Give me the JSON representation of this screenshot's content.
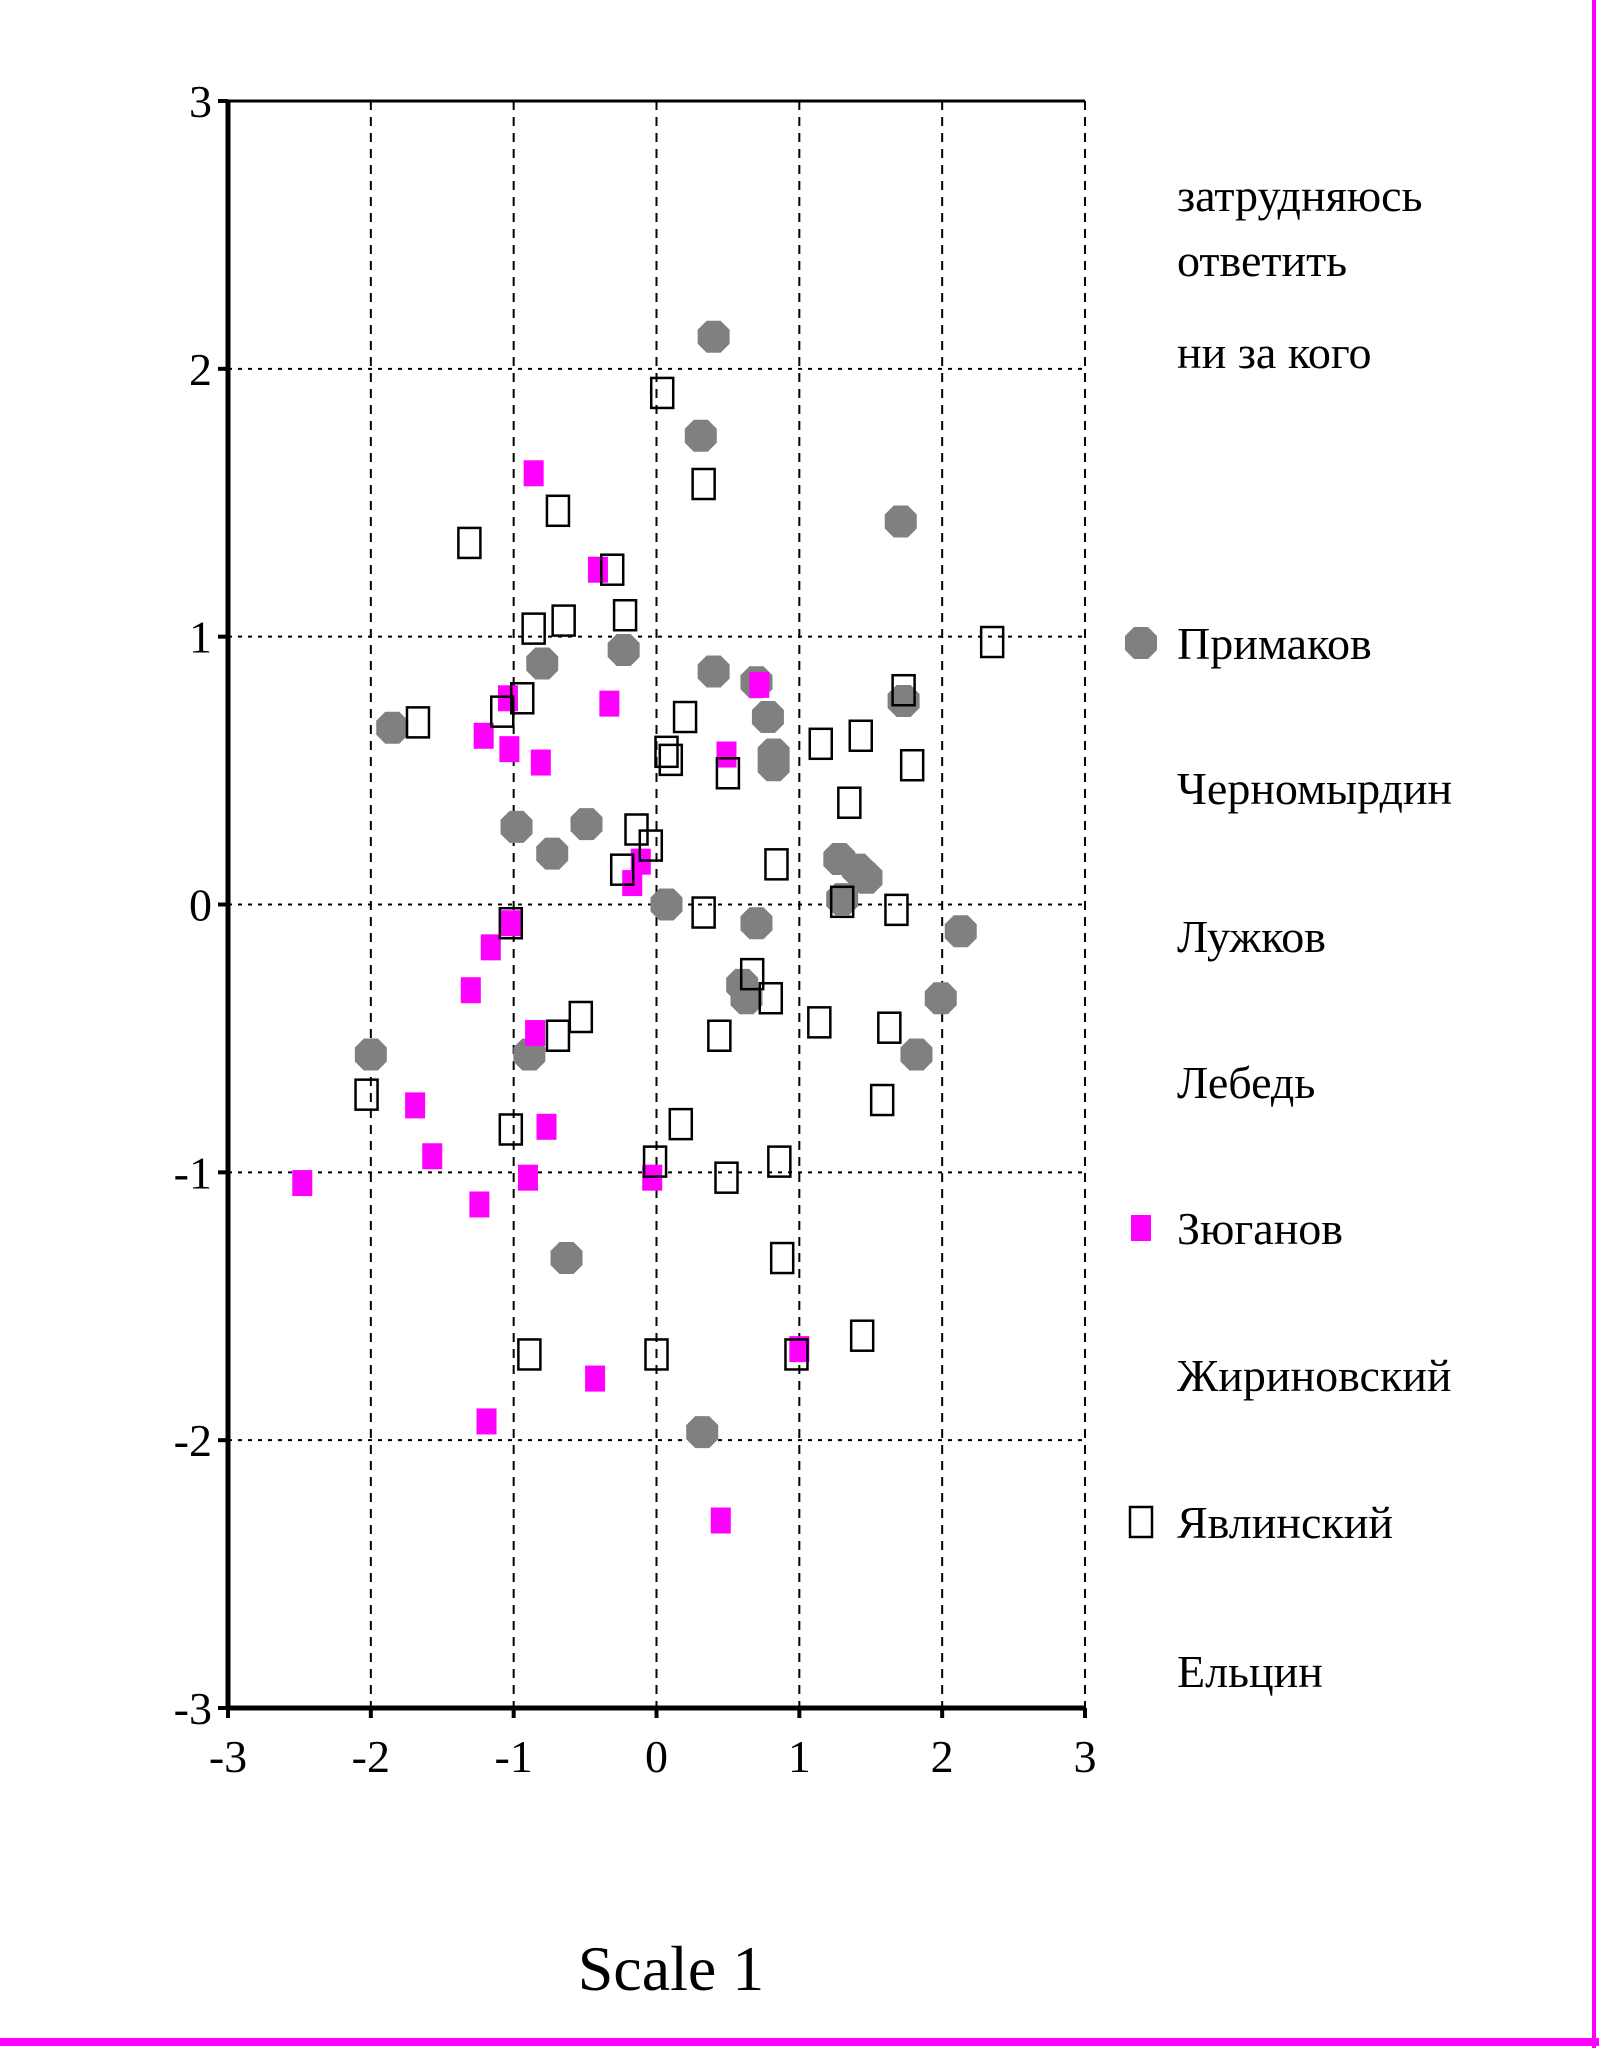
{
  "chart_data": {
    "type": "scatter",
    "xlabel": "Scale 1",
    "ylabel": "",
    "xlim": [
      -3,
      3
    ],
    "ylim": [
      -3,
      3
    ],
    "xticks": [
      "-3",
      "-2",
      "-1",
      "0",
      "1",
      "2",
      "3"
    ],
    "yticks": [
      "3",
      "2",
      "1",
      "0",
      "-1",
      "-2",
      "-3"
    ],
    "grid": true,
    "legend_position": "right",
    "legend": [
      {
        "label": "затрудняюсь",
        "marker": "none"
      },
      {
        "label": "ответить",
        "marker": "none"
      },
      {
        "label": "ни за кого",
        "marker": "none"
      },
      {
        "label": "Примаков",
        "marker": "circle"
      },
      {
        "label": "Черномырдин",
        "marker": "none"
      },
      {
        "label": "Лужков",
        "marker": "none"
      },
      {
        "label": "Лебедь",
        "marker": "none"
      },
      {
        "label": "Зюганов",
        "marker": "filled-square"
      },
      {
        "label": "Жириновский",
        "marker": "none"
      },
      {
        "label": "Явлинский",
        "marker": "open-square"
      },
      {
        "label": "Ельцин",
        "marker": "none"
      }
    ],
    "colors": {
      "Примаков": "#808080",
      "Зюганов": "#ff00ff",
      "Явлинский": "#000000"
    },
    "series": [
      {
        "name": "Примаков",
        "marker": "circle",
        "points": [
          [
            0.4,
            2.12
          ],
          [
            0.31,
            1.75
          ],
          [
            1.71,
            1.43
          ],
          [
            -0.8,
            0.9
          ],
          [
            -0.23,
            0.95
          ],
          [
            0.4,
            0.87
          ],
          [
            0.7,
            0.83
          ],
          [
            0.78,
            0.7
          ],
          [
            0.82,
            0.56
          ],
          [
            0.82,
            0.52
          ],
          [
            1.73,
            0.76
          ],
          [
            -1.85,
            0.66
          ],
          [
            -0.98,
            0.29
          ],
          [
            -0.49,
            0.3
          ],
          [
            -0.73,
            0.19
          ],
          [
            1.28,
            0.17
          ],
          [
            1.41,
            0.13
          ],
          [
            1.47,
            0.1
          ],
          [
            1.3,
            0.02
          ],
          [
            0.07,
            0.0
          ],
          [
            0.7,
            -0.07
          ],
          [
            2.13,
            -0.1
          ],
          [
            0.6,
            -0.3
          ],
          [
            0.63,
            -0.35
          ],
          [
            1.99,
            -0.35
          ],
          [
            -2.0,
            -0.56
          ],
          [
            -0.89,
            -0.56
          ],
          [
            1.82,
            -0.56
          ],
          [
            -0.63,
            -1.32
          ],
          [
            0.32,
            -1.97
          ]
        ]
      },
      {
        "name": "Зюганов",
        "marker": "filled-square",
        "points": [
          [
            -0.86,
            1.61
          ],
          [
            -0.41,
            1.25
          ],
          [
            -1.04,
            0.77
          ],
          [
            -0.33,
            0.75
          ],
          [
            0.72,
            0.82
          ],
          [
            -1.21,
            0.63
          ],
          [
            -1.03,
            0.58
          ],
          [
            -0.81,
            0.53
          ],
          [
            0.49,
            0.56
          ],
          [
            -0.11,
            0.16
          ],
          [
            -0.17,
            0.08
          ],
          [
            -1.02,
            -0.07
          ],
          [
            -1.16,
            -0.16
          ],
          [
            -1.3,
            -0.32
          ],
          [
            -0.85,
            -0.48
          ],
          [
            -1.69,
            -0.75
          ],
          [
            -0.77,
            -0.83
          ],
          [
            -1.57,
            -0.94
          ],
          [
            -2.48,
            -1.04
          ],
          [
            -0.9,
            -1.02
          ],
          [
            -1.24,
            -1.12
          ],
          [
            -0.03,
            -1.02
          ],
          [
            1.0,
            -1.66
          ],
          [
            -0.43,
            -1.77
          ],
          [
            -1.19,
            -1.93
          ],
          [
            0.45,
            -2.3
          ]
        ]
      },
      {
        "name": "Явлинский",
        "marker": "open-square",
        "points": [
          [
            0.04,
            1.91
          ],
          [
            0.33,
            1.57
          ],
          [
            -0.69,
            1.47
          ],
          [
            -1.31,
            1.35
          ],
          [
            -0.31,
            1.25
          ],
          [
            -0.22,
            1.08
          ],
          [
            -0.65,
            1.06
          ],
          [
            -0.86,
            1.03
          ],
          [
            2.35,
            0.98
          ],
          [
            1.73,
            0.8
          ],
          [
            -0.94,
            0.77
          ],
          [
            -1.08,
            0.72
          ],
          [
            -1.67,
            0.68
          ],
          [
            0.2,
            0.7
          ],
          [
            0.07,
            0.57
          ],
          [
            0.1,
            0.54
          ],
          [
            1.15,
            0.6
          ],
          [
            1.43,
            0.63
          ],
          [
            0.5,
            0.49
          ],
          [
            1.79,
            0.52
          ],
          [
            1.35,
            0.38
          ],
          [
            -0.14,
            0.28
          ],
          [
            -0.04,
            0.22
          ],
          [
            0.84,
            0.15
          ],
          [
            -0.24,
            0.13
          ],
          [
            1.3,
            0.01
          ],
          [
            1.68,
            -0.02
          ],
          [
            0.33,
            -0.03
          ],
          [
            -1.02,
            -0.07
          ],
          [
            0.67,
            -0.26
          ],
          [
            0.8,
            -0.35
          ],
          [
            -0.53,
            -0.42
          ],
          [
            -0.69,
            -0.49
          ],
          [
            1.14,
            -0.44
          ],
          [
            1.63,
            -0.46
          ],
          [
            0.44,
            -0.49
          ],
          [
            1.58,
            -0.73
          ],
          [
            -2.03,
            -0.71
          ],
          [
            -1.02,
            -0.84
          ],
          [
            0.17,
            -0.82
          ],
          [
            -0.01,
            -0.96
          ],
          [
            0.86,
            -0.96
          ],
          [
            0.49,
            -1.02
          ],
          [
            0.88,
            -1.32
          ],
          [
            1.44,
            -1.61
          ],
          [
            -0.89,
            -1.68
          ],
          [
            0.0,
            -1.68
          ],
          [
            0.98,
            -1.68
          ]
        ]
      }
    ]
  }
}
